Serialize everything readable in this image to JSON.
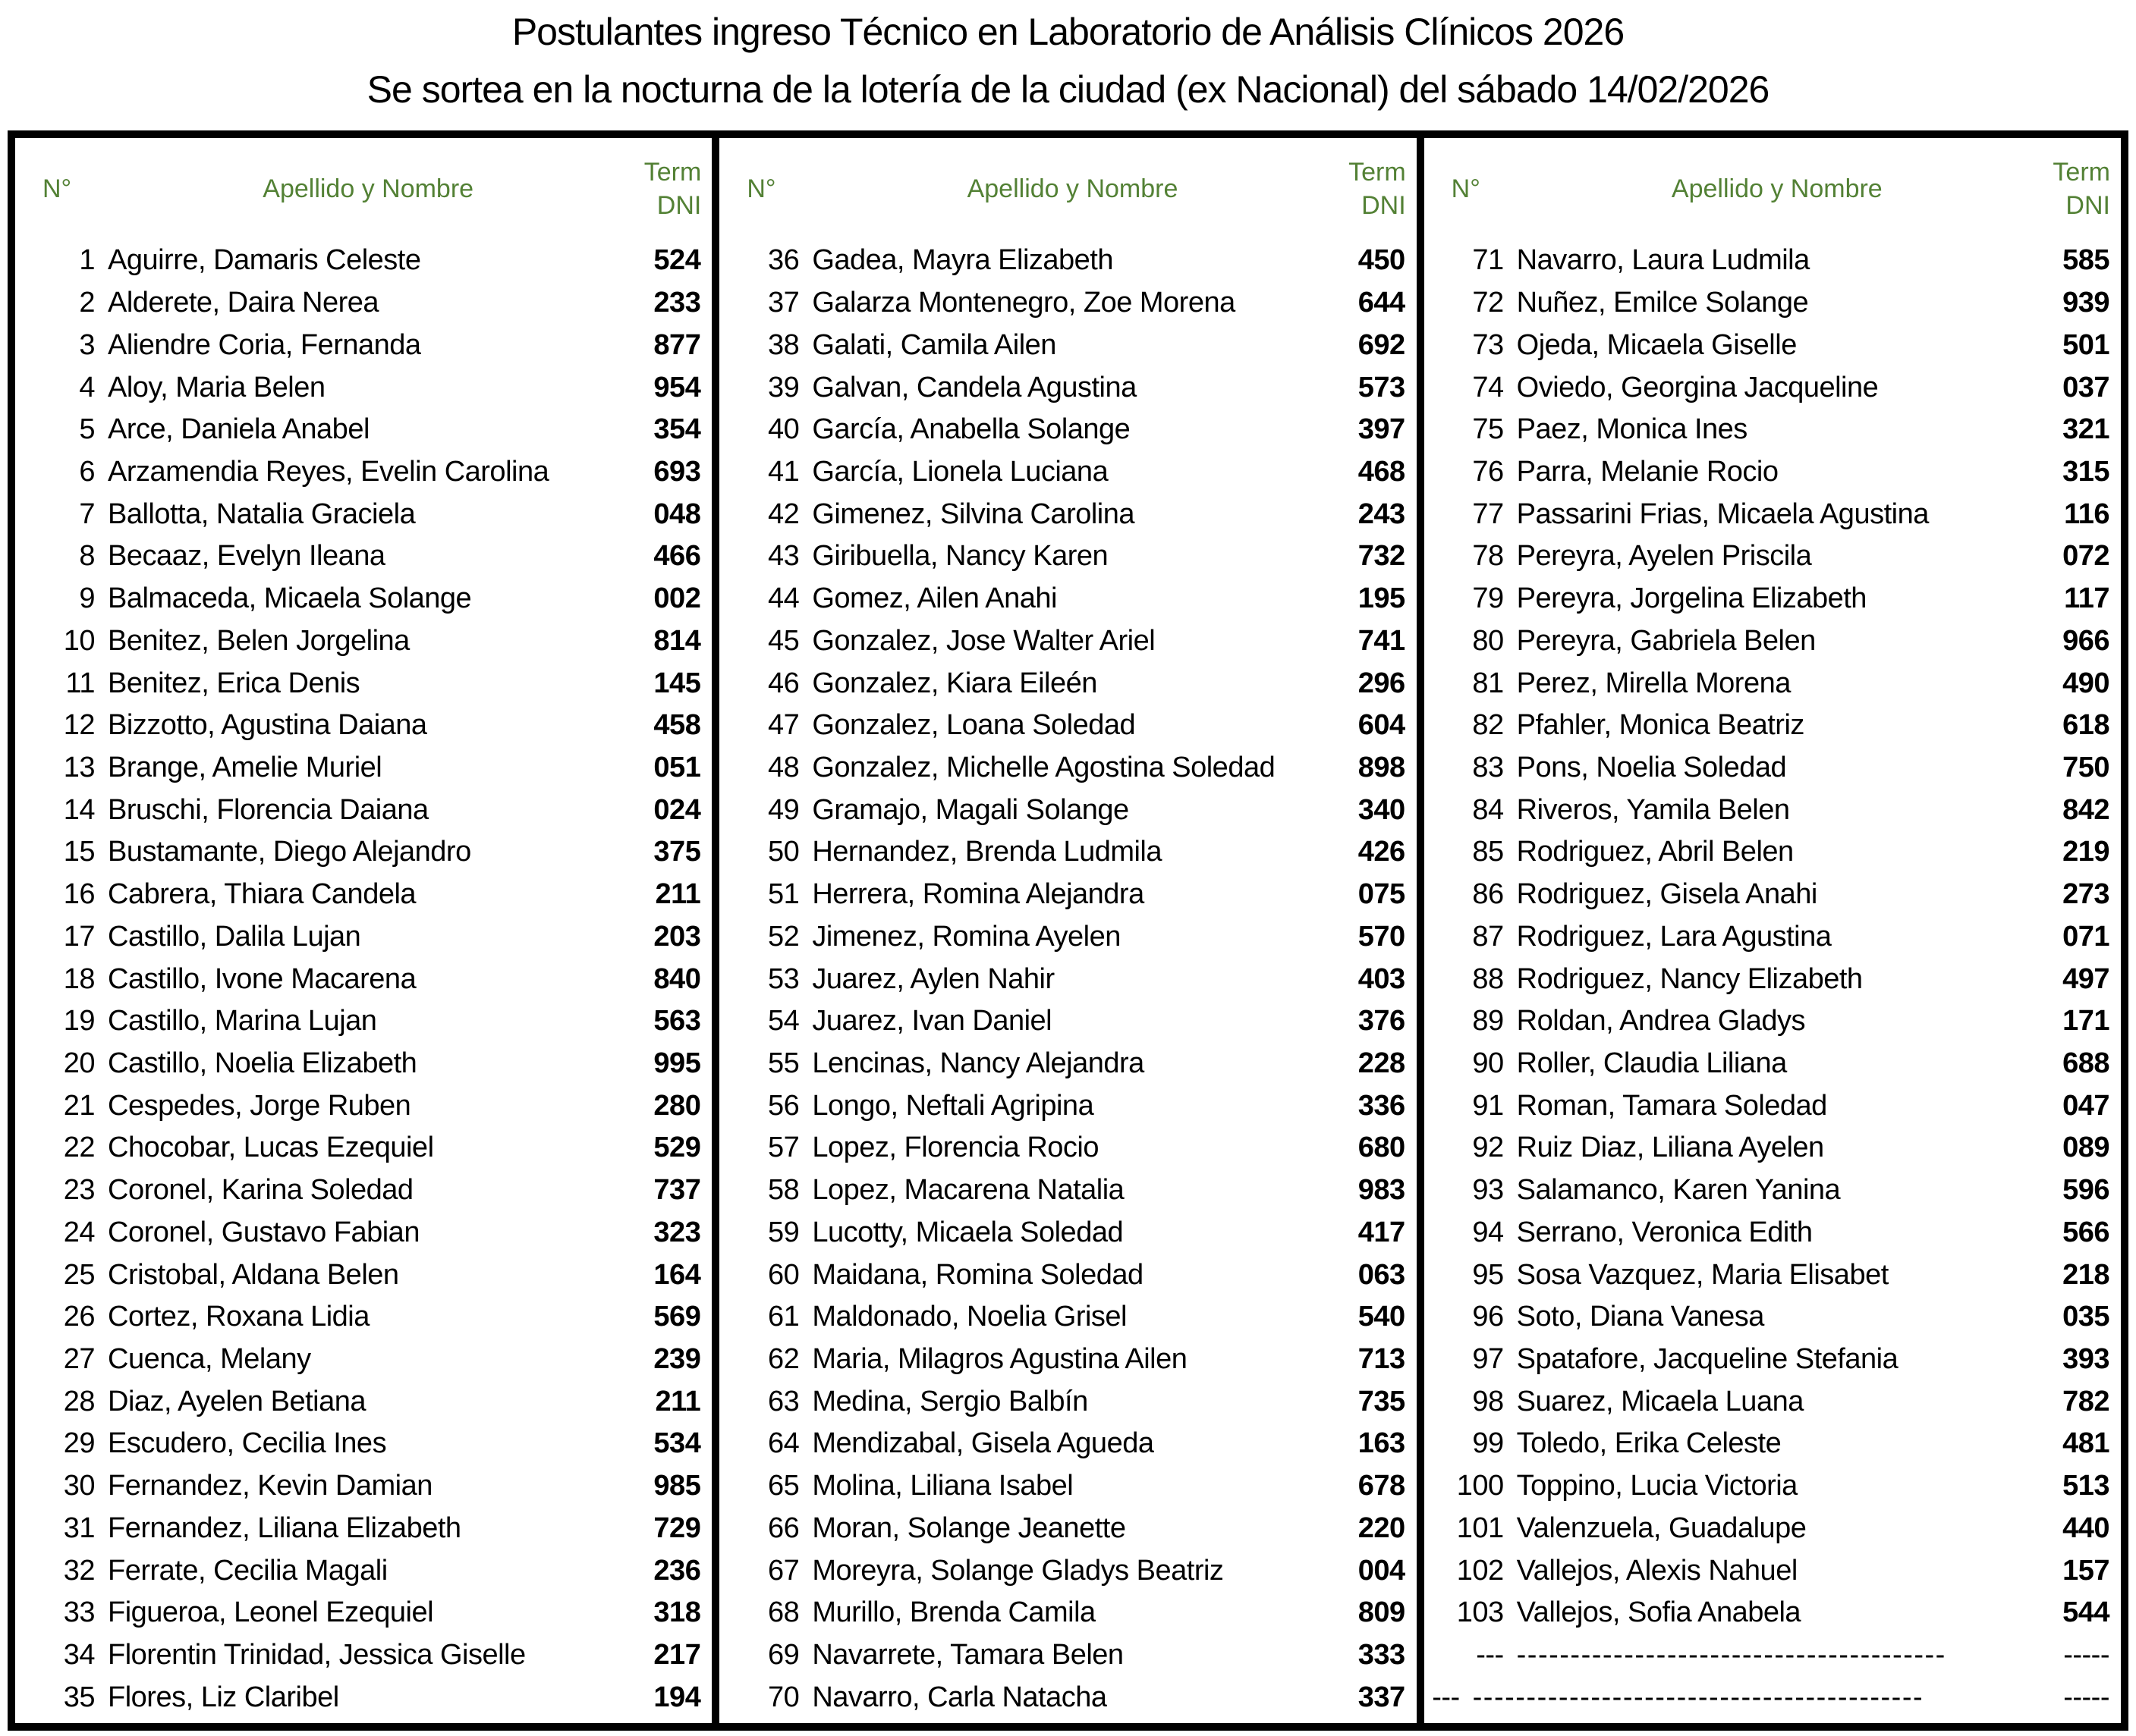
{
  "title": {
    "line1": "Postulantes ingreso Técnico en Laboratorio de Análisis Clínicos 2026",
    "line2": "Se sortea en la nocturna de la lotería de la ciudad (ex Nacional) del sábado 14/02/2026"
  },
  "colors": {
    "header_green": "#538135",
    "text": "#000000",
    "border": "#000000"
  },
  "table": {
    "header": {
      "num": "N°",
      "name": "Apellido y Nombre",
      "dni_line1": "Term",
      "dni_line2": "DNI"
    },
    "columns": [
      {
        "rows": [
          {
            "n": "1",
            "name": "Aguirre, Damaris Celeste",
            "dni": "524"
          },
          {
            "n": "2",
            "name": "Alderete, Daira Nerea",
            "dni": "233"
          },
          {
            "n": "3",
            "name": "Aliendre Coria, Fernanda",
            "dni": "877"
          },
          {
            "n": "4",
            "name": "Aloy, Maria Belen",
            "dni": "954"
          },
          {
            "n": "5",
            "name": "Arce, Daniela Anabel",
            "dni": "354"
          },
          {
            "n": "6",
            "name": "Arzamendia Reyes, Evelin Carolina",
            "dni": "693"
          },
          {
            "n": "7",
            "name": "Ballotta, Natalia Graciela",
            "dni": "048"
          },
          {
            "n": "8",
            "name": "Becaaz, Evelyn Ileana",
            "dni": "466"
          },
          {
            "n": "9",
            "name": "Balmaceda, Micaela Solange",
            "dni": "002"
          },
          {
            "n": "10",
            "name": "Benitez, Belen Jorgelina",
            "dni": "814"
          },
          {
            "n": "11",
            "name": "Benitez, Erica Denis",
            "dni": "145"
          },
          {
            "n": "12",
            "name": "Bizzotto, Agustina Daiana",
            "dni": "458"
          },
          {
            "n": "13",
            "name": "Brange, Amelie Muriel",
            "dni": "051"
          },
          {
            "n": "14",
            "name": "Bruschi, Florencia Daiana",
            "dni": "024"
          },
          {
            "n": "15",
            "name": "Bustamante, Diego Alejandro",
            "dni": "375"
          },
          {
            "n": "16",
            "name": "Cabrera, Thiara Candela",
            "dni": "211"
          },
          {
            "n": "17",
            "name": "Castillo, Dalila Lujan",
            "dni": "203"
          },
          {
            "n": "18",
            "name": "Castillo, Ivone Macarena",
            "dni": "840"
          },
          {
            "n": "19",
            "name": "Castillo, Marina Lujan",
            "dni": "563"
          },
          {
            "n": "20",
            "name": "Castillo, Noelia Elizabeth",
            "dni": "995"
          },
          {
            "n": "21",
            "name": "Cespedes, Jorge Ruben",
            "dni": "280"
          },
          {
            "n": "22",
            "name": "Chocobar, Lucas Ezequiel",
            "dni": "529"
          },
          {
            "n": "23",
            "name": "Coronel, Karina Soledad",
            "dni": "737"
          },
          {
            "n": "24",
            "name": "Coronel, Gustavo Fabian",
            "dni": "323"
          },
          {
            "n": "25",
            "name": "Cristobal, Aldana Belen",
            "dni": "164"
          },
          {
            "n": "26",
            "name": "Cortez, Roxana Lidia",
            "dni": "569"
          },
          {
            "n": "27",
            "name": "Cuenca, Melany",
            "dni": "239"
          },
          {
            "n": "28",
            "name": "Diaz, Ayelen Betiana",
            "dni": "211"
          },
          {
            "n": "29",
            "name": "Escudero, Cecilia Ines",
            "dni": "534"
          },
          {
            "n": "30",
            "name": "Fernandez, Kevin Damian",
            "dni": "985"
          },
          {
            "n": "31",
            "name": "Fernandez, Liliana Elizabeth",
            "dni": "729"
          },
          {
            "n": "32",
            "name": "Ferrate, Cecilia Magali",
            "dni": "236"
          },
          {
            "n": "33",
            "name": "Figueroa, Leonel Ezequiel",
            "dni": "318"
          },
          {
            "n": "34",
            "name": "Florentin Trinidad, Jessica Giselle",
            "dni": "217"
          },
          {
            "n": "35",
            "name": "Flores, Liz Claribel",
            "dni": "194"
          }
        ]
      },
      {
        "rows": [
          {
            "n": "36",
            "name": "Gadea, Mayra Elizabeth",
            "dni": "450"
          },
          {
            "n": "37",
            "name": "Galarza Montenegro, Zoe Morena",
            "dni": "644"
          },
          {
            "n": "38",
            "name": "Galati, Camila Ailen",
            "dni": "692"
          },
          {
            "n": "39",
            "name": "Galvan, Candela Agustina",
            "dni": "573"
          },
          {
            "n": "40",
            "name": "García, Anabella Solange",
            "dni": "397"
          },
          {
            "n": "41",
            "name": "García, Lionela Luciana",
            "dni": "468"
          },
          {
            "n": "42",
            "name": "Gimenez, Silvina Carolina",
            "dni": "243"
          },
          {
            "n": "43",
            "name": "Giribuella, Nancy Karen",
            "dni": "732"
          },
          {
            "n": "44",
            "name": "Gomez, Ailen Anahi",
            "dni": "195"
          },
          {
            "n": "45",
            "name": "Gonzalez, Jose Walter Ariel",
            "dni": "741"
          },
          {
            "n": "46",
            "name": "Gonzalez, Kiara Eileén",
            "dni": "296"
          },
          {
            "n": "47",
            "name": "Gonzalez, Loana Soledad",
            "dni": "604"
          },
          {
            "n": "48",
            "name": "Gonzalez, Michelle Agostina Soledad",
            "dni": "898"
          },
          {
            "n": "49",
            "name": "Gramajo, Magali Solange",
            "dni": "340"
          },
          {
            "n": "50",
            "name": "Hernandez, Brenda Ludmila",
            "dni": "426"
          },
          {
            "n": "51",
            "name": "Herrera, Romina Alejandra",
            "dni": "075"
          },
          {
            "n": "52",
            "name": "Jimenez, Romina Ayelen",
            "dni": "570"
          },
          {
            "n": "53",
            "name": "Juarez, Aylen Nahir",
            "dni": "403"
          },
          {
            "n": "54",
            "name": "Juarez, Ivan Daniel",
            "dni": "376"
          },
          {
            "n": "55",
            "name": "Lencinas, Nancy Alejandra",
            "dni": "228"
          },
          {
            "n": "56",
            "name": "Longo, Neftali Agripina",
            "dni": "336"
          },
          {
            "n": "57",
            "name": "Lopez, Florencia Rocio",
            "dni": "680"
          },
          {
            "n": "58",
            "name": "Lopez, Macarena Natalia",
            "dni": "983"
          },
          {
            "n": "59",
            "name": "Lucotty, Micaela Soledad",
            "dni": "417"
          },
          {
            "n": "60",
            "name": "Maidana, Romina Soledad",
            "dni": "063"
          },
          {
            "n": "61",
            "name": "Maldonado, Noelia Grisel",
            "dni": "540"
          },
          {
            "n": "62",
            "name": "Maria, Milagros Agustina Ailen",
            "dni": "713"
          },
          {
            "n": "63",
            "name": "Medina, Sergio Balbín",
            "dni": "735"
          },
          {
            "n": "64",
            "name": "Mendizabal, Gisela Agueda",
            "dni": "163"
          },
          {
            "n": "65",
            "name": "Molina, Liliana Isabel",
            "dni": "678"
          },
          {
            "n": "66",
            "name": "Moran, Solange Jeanette",
            "dni": "220"
          },
          {
            "n": "67",
            "name": "Moreyra, Solange Gladys Beatriz",
            "dni": "004"
          },
          {
            "n": "68",
            "name": "Murillo, Brenda Camila",
            "dni": "809"
          },
          {
            "n": "69",
            "name": "Navarrete, Tamara Belen",
            "dni": "333"
          },
          {
            "n": "70",
            "name": "Navarro, Carla Natacha",
            "dni": "337"
          }
        ]
      },
      {
        "rows": [
          {
            "n": "71",
            "name": "Navarro, Laura Ludmila",
            "dni": "585"
          },
          {
            "n": "72",
            "name": "Nuñez, Emilce Solange",
            "dni": "939"
          },
          {
            "n": "73",
            "name": "Ojeda, Micaela Giselle",
            "dni": "501"
          },
          {
            "n": "74",
            "name": "Oviedo, Georgina Jacqueline",
            "dni": "037"
          },
          {
            "n": "75",
            "name": "Paez, Monica Ines",
            "dni": "321"
          },
          {
            "n": "76",
            "name": "Parra, Melanie Rocio",
            "dni": "315"
          },
          {
            "n": "77",
            "name": "Passarini Frias, Micaela Agustina",
            "dni": "116"
          },
          {
            "n": "78",
            "name": "Pereyra, Ayelen Priscila",
            "dni": "072"
          },
          {
            "n": "79",
            "name": "Pereyra, Jorgelina Elizabeth",
            "dni": "117"
          },
          {
            "n": "80",
            "name": "Pereyra, Gabriela Belen",
            "dni": "966"
          },
          {
            "n": "81",
            "name": "Perez, Mirella Morena",
            "dni": "490"
          },
          {
            "n": "82",
            "name": "Pfahler, Monica Beatriz",
            "dni": "618"
          },
          {
            "n": "83",
            "name": "Pons, Noelia Soledad",
            "dni": "750"
          },
          {
            "n": "84",
            "name": "Riveros, Yamila Belen",
            "dni": "842"
          },
          {
            "n": "85",
            "name": "Rodriguez, Abril Belen",
            "dni": "219"
          },
          {
            "n": "86",
            "name": "Rodriguez, Gisela Anahi",
            "dni": "273"
          },
          {
            "n": "87",
            "name": "Rodriguez, Lara Agustina",
            "dni": "071"
          },
          {
            "n": "88",
            "name": "Rodriguez, Nancy Elizabeth",
            "dni": "497"
          },
          {
            "n": "89",
            "name": "Roldan, Andrea Gladys",
            "dni": "171"
          },
          {
            "n": "90",
            "name": "Roller, Claudia Liliana",
            "dni": "688"
          },
          {
            "n": "91",
            "name": "Roman, Tamara Soledad",
            "dni": "047"
          },
          {
            "n": "92",
            "name": "Ruiz Diaz, Liliana Ayelen",
            "dni": "089"
          },
          {
            "n": "93",
            "name": "Salamanco, Karen Yanina",
            "dni": "596"
          },
          {
            "n": "94",
            "name": "Serrano, Veronica Edith",
            "dni": "566"
          },
          {
            "n": "95",
            "name": "Sosa Vazquez, Maria Elisabet",
            "dni": "218"
          },
          {
            "n": "96",
            "name": "Soto, Diana Vanesa",
            "dni": "035"
          },
          {
            "n": "97",
            "name": "Spatafore, Jacqueline Stefania",
            "dni": "393"
          },
          {
            "n": "98",
            "name": "Suarez, Micaela Luana",
            "dni": "782"
          },
          {
            "n": "99",
            "name": "Toledo, Erika Celeste",
            "dni": "481"
          },
          {
            "n": "100",
            "name": "Toppino, Lucia Victoria",
            "dni": "513"
          },
          {
            "n": "101",
            "name": "Valenzuela, Guadalupe",
            "dni": "440"
          },
          {
            "n": "102",
            "name": "Vallejos, Alexis Nahuel",
            "dni": "157"
          },
          {
            "n": "103",
            "name": "Vallejos, Sofia Anabela",
            "dni": "544"
          },
          {
            "n": "---",
            "name": "----------------------------------------",
            "dni": "-----",
            "dashed": true
          },
          {
            "n": "---",
            "name": "------------------------------------------",
            "dni": "-----",
            "dashed": true,
            "shifted": true
          }
        ]
      }
    ]
  }
}
